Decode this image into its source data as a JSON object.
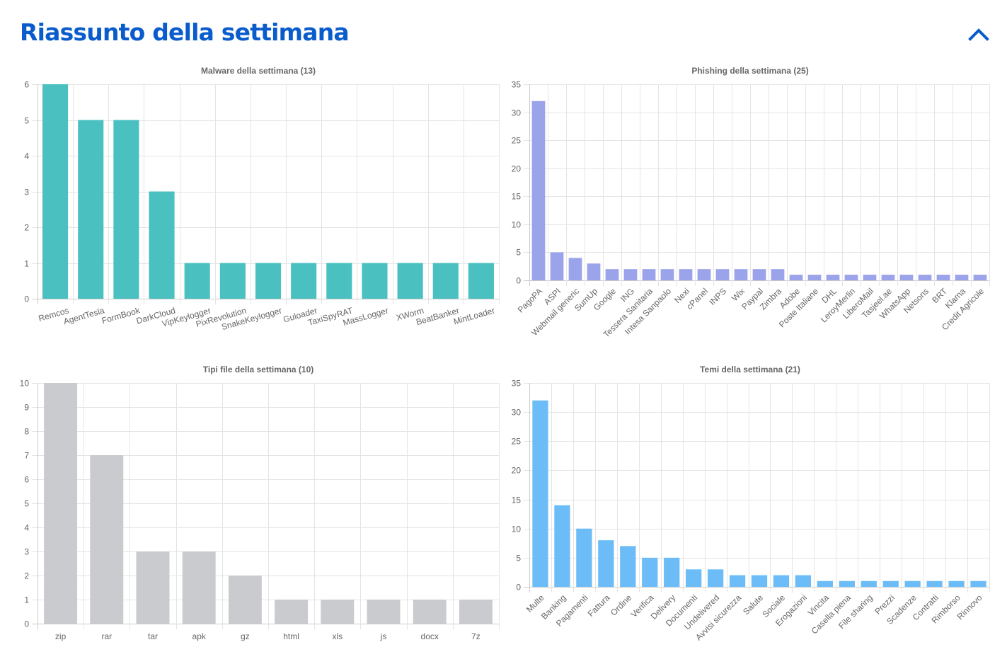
{
  "header": {
    "title": "Riassunto della settimana",
    "collapse_icon": "chevron-up-icon",
    "accent_color": "#0a5ccc"
  },
  "chart_data": [
    {
      "id": "malware",
      "type": "bar",
      "title": "Malware della settimana (13)",
      "xlabel": "",
      "ylabel": "",
      "ylim": [
        0,
        6
      ],
      "ystep": 1,
      "grid": true,
      "color": "#4bc0c0",
      "label_rotation": "slanted",
      "categories": [
        "Remcos",
        "AgentTesla",
        "FormBook",
        "DarkCloud",
        "VipKeylogger",
        "PixRevolution",
        "SnakeKeylogger",
        "Guloader",
        "TaxiSpyRAT",
        "MassLogger",
        "XWorm",
        "BeatBanker",
        "MintLoader"
      ],
      "values": [
        6,
        5,
        5,
        3,
        1,
        1,
        1,
        1,
        1,
        1,
        1,
        1,
        1
      ]
    },
    {
      "id": "phishing",
      "type": "bar",
      "title": "Phishing della settimana (25)",
      "xlabel": "",
      "ylabel": "",
      "ylim": [
        0,
        35
      ],
      "ystep": 5,
      "grid": true,
      "color": "#9ba3eb",
      "label_rotation": "diagonal",
      "categories": [
        "PagoPA",
        "ASPI",
        "Webmail generic",
        "SumUp",
        "Google",
        "ING",
        "Tessera Sanitaria",
        "Intesa Sanpaolo",
        "Nexi",
        "cPanel",
        "INPS",
        "Wix",
        "Paypal",
        "Zimbra",
        "Adobe",
        "Poste Italiane",
        "DHL",
        "LeroyMerlin",
        "LiberoMail",
        "Tasjeel.ae",
        "WhatsApp",
        "Netsons",
        "BRT",
        "Klarna",
        "Credit Agricole"
      ],
      "values": [
        32,
        5,
        4,
        3,
        2,
        2,
        2,
        2,
        2,
        2,
        2,
        2,
        2,
        2,
        1,
        1,
        1,
        1,
        1,
        1,
        1,
        1,
        1,
        1,
        1
      ]
    },
    {
      "id": "filetypes",
      "type": "bar",
      "title": "Tipi file della settimana (10)",
      "xlabel": "",
      "ylabel": "",
      "ylim": [
        0,
        10
      ],
      "ystep": 1,
      "grid": true,
      "color": "#c9cbcf",
      "label_rotation": "none",
      "categories": [
        "zip",
        "rar",
        "tar",
        "apk",
        "gz",
        "html",
        "xls",
        "js",
        "docx",
        "7z"
      ],
      "values": [
        10,
        7,
        3,
        3,
        2,
        1,
        1,
        1,
        1,
        1
      ]
    },
    {
      "id": "themes",
      "type": "bar",
      "title": "Temi della settimana (21)",
      "xlabel": "",
      "ylabel": "",
      "ylim": [
        0,
        35
      ],
      "ystep": 5,
      "grid": true,
      "color": "#6cbdf7",
      "label_rotation": "diagonal",
      "categories": [
        "Multe",
        "Banking",
        "Pagamenti",
        "Fattura",
        "Ordine",
        "Verifica",
        "Delivery",
        "Documenti",
        "Undelivered",
        "Avvisi sicurezza",
        "Salute",
        "Sociale",
        "Erogazioni",
        "Vincita",
        "Casella piena",
        "File sharing",
        "Prezzi",
        "Scadenze",
        "Contratti",
        "Rimborso",
        "Rinnovo"
      ],
      "values": [
        32,
        14,
        10,
        8,
        7,
        5,
        5,
        3,
        3,
        2,
        2,
        2,
        2,
        1,
        1,
        1,
        1,
        1,
        1,
        1,
        1
      ]
    }
  ]
}
